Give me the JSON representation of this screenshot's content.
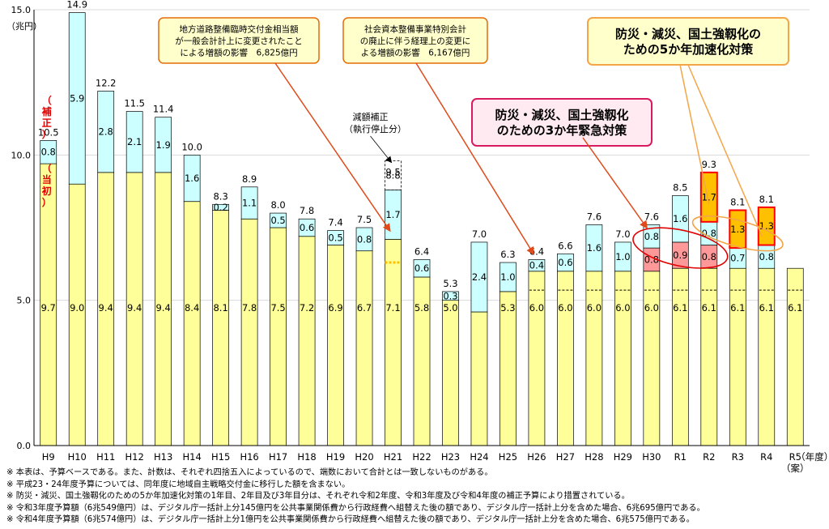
{
  "chart_data": {
    "type": "bar",
    "stacked": true,
    "ylabel": "（兆円）",
    "x_axis_suffix": "（年度）",
    "ylim": [
      0,
      15
    ],
    "yticks": [
      "0.0",
      "5.0",
      "10.0",
      "15.0"
    ],
    "grid": true,
    "categories": [
      "H9",
      "H10",
      "H11",
      "H12",
      "H13",
      "H14",
      "H15",
      "H16",
      "H17",
      "H18",
      "H19",
      "H20",
      "H21",
      "H22",
      "H23",
      "H24",
      "H25",
      "H26",
      "H27",
      "H28",
      "H29",
      "H30",
      "R1",
      "R2",
      "R3",
      "R4",
      "R5"
    ],
    "r5_sub": "（案）",
    "series": [
      {
        "name": "当初",
        "values": [
          9.7,
          9.0,
          9.4,
          9.4,
          9.4,
          8.4,
          8.1,
          7.8,
          7.5,
          7.2,
          6.9,
          6.7,
          7.1,
          5.8,
          5.0,
          4.6,
          5.3,
          6.0,
          6.0,
          6.0,
          6.0,
          6.0,
          6.1,
          6.1,
          6.1,
          6.1,
          6.1
        ],
        "labels": [
          "9.7",
          "9.0",
          "9.4",
          "9.4",
          "9.4",
          "8.4",
          "8.1",
          "7.8",
          "7.5",
          "7.2",
          "6.9",
          "6.7",
          "7.1",
          "5.8",
          "5.0",
          "4.6",
          "5.3",
          "6.0",
          "6.0",
          "6.0",
          "6.0",
          "6.0",
          "6.1",
          "6.1",
          "6.1",
          "6.1",
          "6.1"
        ]
      },
      {
        "name": "補正",
        "values": [
          0.8,
          5.9,
          2.8,
          2.1,
          1.9,
          1.6,
          0.2,
          1.1,
          0.5,
          0.6,
          0.5,
          0.8,
          1.7,
          0.6,
          0.3,
          2.4,
          1.0,
          0.4,
          0.6,
          1.6,
          1.0,
          0.8,
          1.6,
          0.8,
          0.7,
          0.8,
          0
        ],
        "labels": [
          "0.8",
          "5.9",
          "2.8",
          "2.1",
          "1.9",
          "1.6",
          "0.2",
          "1.1",
          "0.5",
          "0.6",
          "0.5",
          "0.8",
          "1.7",
          "0.6",
          "0.3",
          "2.4",
          "1.0",
          "0.4",
          "0.6",
          "1.6",
          "1.0",
          "0.8",
          "1.6",
          "0.8",
          "0.7",
          "0.8",
          ""
        ]
      },
      {
        "name": "防災・減災、国土強靱化のための3か年緊急対策",
        "values": [
          0,
          0,
          0,
          0,
          0,
          0,
          0,
          0,
          0,
          0,
          0,
          0,
          0,
          0,
          0,
          0,
          0,
          0,
          0,
          0,
          0,
          0.8,
          0.9,
          0.8,
          0,
          0,
          0
        ],
        "labels": [
          "",
          "",
          "",
          "",
          "",
          "",
          "",
          "",
          "",
          "",
          "",
          "",
          "",
          "",
          "",
          "",
          "",
          "",
          "",
          "",
          "",
          "0.8",
          "0.9",
          "0.8",
          "",
          "",
          ""
        ]
      },
      {
        "name": "防災・減災、国土強靱化のための5か年加速化対策",
        "values": [
          0,
          0,
          0,
          0,
          0,
          0,
          0,
          0,
          0,
          0,
          0,
          0,
          0,
          0,
          0,
          0,
          0,
          0,
          0,
          0,
          0,
          0,
          0,
          1.7,
          1.3,
          1.3,
          0
        ],
        "labels": [
          "",
          "",
          "",
          "",
          "",
          "",
          "",
          "",
          "",
          "",
          "",
          "",
          "",
          "",
          "",
          "",
          "",
          "",
          "",
          "",
          "",
          "",
          "",
          "1.7",
          "1.3",
          "1.3",
          ""
        ]
      }
    ],
    "totals": [
      "10.5",
      "14.9",
      "12.2",
      "11.5",
      "11.4",
      "10.0",
      "8.3",
      "8.9",
      "8.0",
      "7.8",
      "7.4",
      "7.5",
      "9.5",
      "6.4",
      "5.3",
      "7.0",
      "6.3",
      "6.4",
      "6.6",
      "7.6",
      "7.0",
      "7.6",
      "8.5",
      "9.3",
      "8.1",
      "8.1",
      ""
    ],
    "h21_cut": {
      "value": 1.0,
      "label": "8.8",
      "caption": [
        "減額補正",
        "（執行停止分）"
      ]
    },
    "side_labels": {
      "hosei": [
        "（",
        "補",
        "正",
        "）"
      ],
      "toshou": [
        "（",
        "当",
        "初",
        "）"
      ]
    },
    "callouts": [
      {
        "text": [
          "地方道路整備臨時交付金相当額",
          "が一般会計計上に変更されたこと",
          "による増額の影響　6,825億円"
        ]
      },
      {
        "text": [
          "社会資本整備事業特別会計",
          "の廃止に伴う経理上の変更に",
          "よる増額の影響　6,167億円"
        ]
      },
      {
        "text": [
          "防災・減災、国土強靱化の",
          "ための5か年加速化対策"
        ]
      },
      {
        "text": [
          "防災・減災、国土強靱化",
          "のための3か年緊急対策"
        ]
      }
    ],
    "colors": {
      "toshou": "#ffff99",
      "hosei": "#ccffff",
      "emergency": "#ff9999",
      "accel": "#ffc000",
      "accel_border": "#ff0000",
      "callout_border": "#e36c09",
      "callout_fill": "#ffffcc",
      "pink_border": "#d81b60",
      "pink_fill": "#ffeaf2",
      "arrow": "#e04a1a",
      "orange_line": "#f4a548"
    }
  },
  "notes": [
    "※ 本表は、予算ベースである。また、計数は、それぞれ四捨五入によっているので、端数において合計とは一致しないものがある。",
    "※ 平成23・24年度予算については、同年度に地域自主戦略交付金に移行した額を含まない。",
    "※ 防災・減災、国土強靱化のための5か年加速化対策の1年目、2年目及び3年目分は、それぞれ令和2年度、令和3年度及び令和4年度の補正予算により措置されている。",
    "※ 令和3年度予算額（6兆549億円）は、デジタル庁一括計上分145億円を公共事業関係費から行政経費へ組替えた後の額であり、デジタル庁一括計上分を含めた場合、6兆695億円である。",
    "※ 令和4年度予算額（6兆574億円）は、デジタル庁一括計上分1億円を公共事業関係費から行政経費へ組替えた後の額であり、デジタル庁一括計上分を含めた場合、6兆575億円である。"
  ]
}
